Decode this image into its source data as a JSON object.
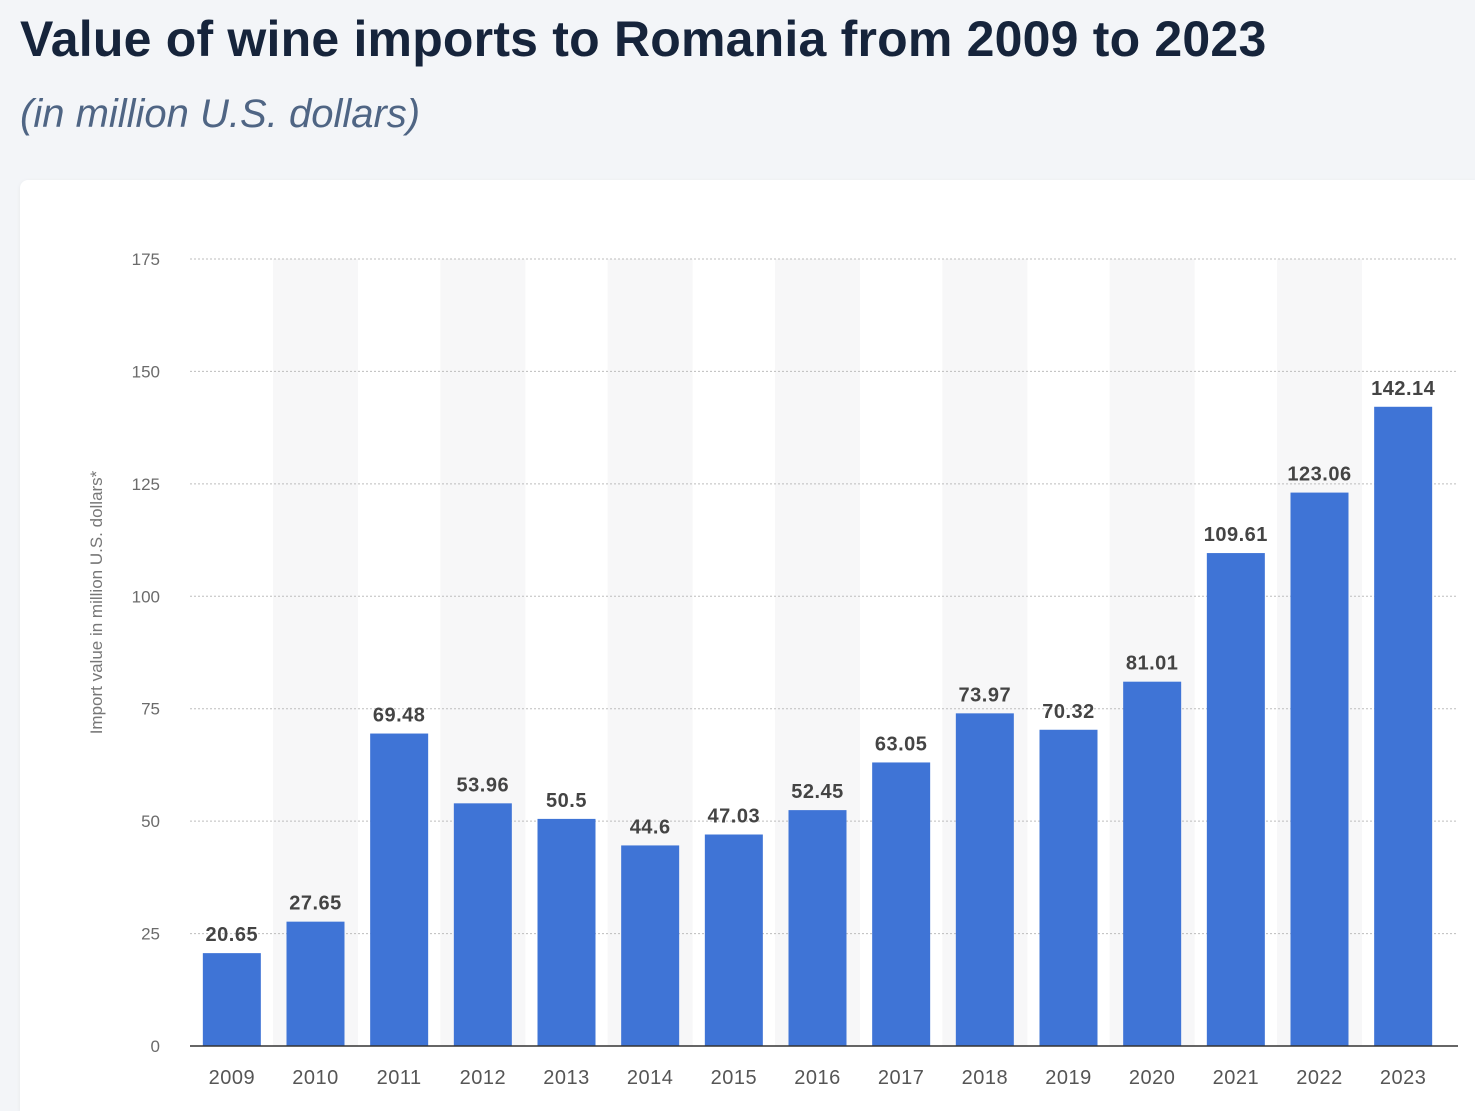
{
  "chart_data": {
    "type": "bar",
    "title": "Value of wine imports to Romania from 2009 to 2023",
    "subtitle": "(in million U.S. dollars)",
    "ylabel": "Import value in million U.S. dollars*",
    "xlabel": "",
    "categories": [
      "2009",
      "2010",
      "2011",
      "2012",
      "2013",
      "2014",
      "2015",
      "2016",
      "2017",
      "2018",
      "2019",
      "2020",
      "2021",
      "2022",
      "2023"
    ],
    "values": [
      20.65,
      27.65,
      69.48,
      53.96,
      50.5,
      44.6,
      47.03,
      52.45,
      63.05,
      73.97,
      70.32,
      81.01,
      109.61,
      123.06,
      142.14
    ],
    "value_labels": [
      "20.65",
      "27.65",
      "69.48",
      "53.96",
      "50.5",
      "44.6",
      "47.03",
      "52.45",
      "63.05",
      "73.97",
      "70.32",
      "81.01",
      "109.61",
      "123.06",
      "142.14"
    ],
    "ylim": [
      0,
      175
    ],
    "yticks": [
      0,
      25,
      50,
      75,
      100,
      125,
      150,
      175
    ],
    "grid": true,
    "legend": "none",
    "bar_color": "#3f74d6",
    "alternate_band_color": "#f7f7f8"
  }
}
